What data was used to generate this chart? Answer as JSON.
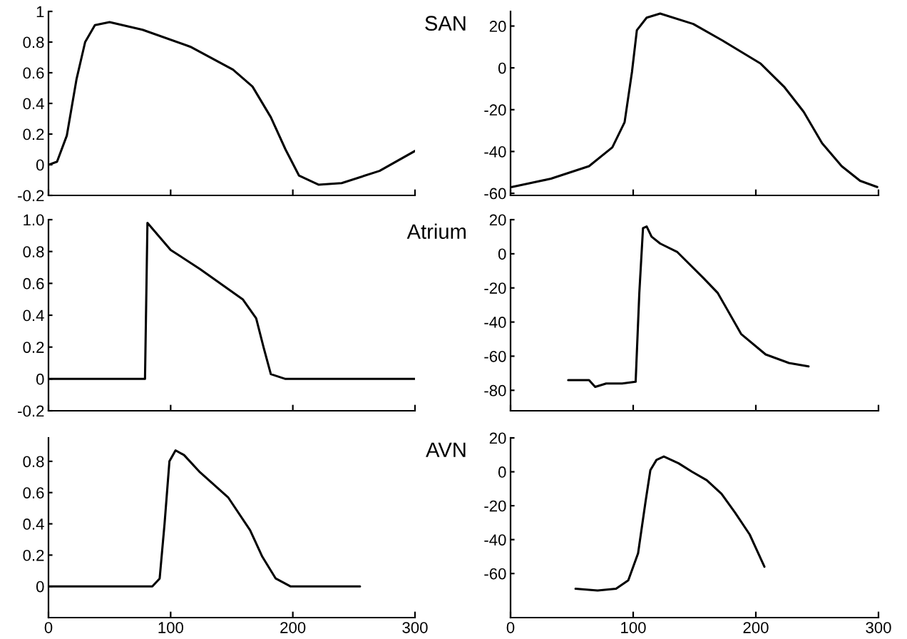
{
  "chart_data": [
    {
      "type": "line",
      "xlim": [
        0,
        300
      ],
      "xticks": [
        0,
        100,
        200,
        300
      ],
      "ylim": [
        -0.2,
        1
      ],
      "yticks": [
        -0.2,
        0,
        0.2,
        0.4,
        0.6,
        0.8,
        1
      ],
      "tick_labels": "y",
      "series": [
        {
          "color": "#000000",
          "x": [
            0,
            7,
            15,
            23,
            30,
            38,
            50,
            77,
            116,
            151,
            167,
            182,
            194,
            205,
            221,
            240,
            271,
            300
          ],
          "values": [
            0,
            0.02,
            0.19,
            0.56,
            0.8,
            0.91,
            0.93,
            0.88,
            0.77,
            0.62,
            0.51,
            0.31,
            0.1,
            -0.07,
            -0.13,
            -0.12,
            -0.04,
            0.09
          ]
        }
      ]
    },
    {
      "type": "line",
      "title": "SAN",
      "xlim": [
        0,
        300
      ],
      "xticks": [
        0,
        100,
        200,
        300
      ],
      "ylim": [
        -61,
        27
      ],
      "yticks": [
        -60,
        -40,
        -20,
        0,
        20
      ],
      "tick_labels": "y",
      "series": [
        {
          "color": "#000000",
          "x": [
            1,
            33,
            64,
            83,
            93,
            99,
            103,
            111,
            122,
            149,
            173,
            204,
            223,
            239,
            254,
            270,
            285,
            299
          ],
          "values": [
            -57,
            -53,
            -47,
            -38,
            -26,
            -2,
            18,
            24,
            26,
            21,
            13,
            2,
            -9,
            -21,
            -36,
            -47,
            -54,
            -57
          ]
        }
      ]
    },
    {
      "type": "line",
      "xlim": [
        0,
        300
      ],
      "xticks": [
        0,
        100,
        200,
        300
      ],
      "ylim": [
        -0.2,
        1
      ],
      "yticks": [
        -0.2,
        0,
        0.2,
        0.4,
        0.6,
        0.8,
        {
          "value": 1,
          "label": "1.0"
        }
      ],
      "tick_labels": "y",
      "series": [
        {
          "color": "#000000",
          "x": [
            0,
            79,
            81,
            100,
            124,
            159,
            170,
            176,
            182,
            194,
            300
          ],
          "values": [
            0,
            0,
            0.98,
            0.81,
            0.69,
            0.5,
            0.38,
            0.2,
            0.03,
            0,
            0
          ]
        }
      ]
    },
    {
      "type": "line",
      "title": "Atrium",
      "xlim": [
        0,
        300
      ],
      "xticks": [
        0,
        100,
        200,
        300
      ],
      "ylim": [
        -92,
        20
      ],
      "yticks": [
        -80,
        -60,
        -40,
        -20,
        0,
        20
      ],
      "tick_labels": "y",
      "series": [
        {
          "color": "#000000",
          "x": [
            47,
            64,
            69,
            78,
            91,
            102,
            105,
            108,
            111,
            115,
            122,
            136,
            157,
            169,
            188,
            208,
            227,
            243
          ],
          "values": [
            -74,
            -74,
            -78,
            -76,
            -76,
            -75,
            -23,
            15,
            16,
            10,
            6,
            1,
            -14,
            -23,
            -47,
            -59,
            -64,
            -66
          ]
        }
      ]
    },
    {
      "type": "line",
      "xlim": [
        0,
        300
      ],
      "xticks": [
        0,
        100,
        200,
        300
      ],
      "ylim": [
        -0.2,
        0.95
      ],
      "yticks": [
        0,
        0.2,
        0.4,
        0.6,
        0.8
      ],
      "series": [
        {
          "color": "#000000",
          "x": [
            0,
            85,
            91,
            95,
            99,
            104,
            111,
            124,
            147,
            165,
            175,
            186,
            198,
            255
          ],
          "values": [
            0,
            0,
            0.05,
            0.4,
            0.8,
            0.87,
            0.84,
            0.73,
            0.57,
            0.36,
            0.19,
            0.05,
            0,
            0
          ]
        }
      ]
    },
    {
      "type": "line",
      "title": "AVN",
      "xlim": [
        0,
        300
      ],
      "xticks": [
        0,
        100,
        200,
        300
      ],
      "ylim": [
        -86,
        20
      ],
      "yticks": [
        -60,
        -40,
        -20,
        0,
        20
      ],
      "series": [
        {
          "color": "#000000",
          "x": [
            53,
            71,
            86,
            96,
            104,
            110,
            114,
            119,
            125,
            137,
            148,
            160,
            172,
            183,
            195,
            207
          ],
          "values": [
            -69,
            -70,
            -69,
            -64,
            -48,
            -18,
            1,
            7,
            9,
            5,
            0,
            -5,
            -13,
            -24,
            -37,
            -56
          ]
        }
      ]
    }
  ]
}
